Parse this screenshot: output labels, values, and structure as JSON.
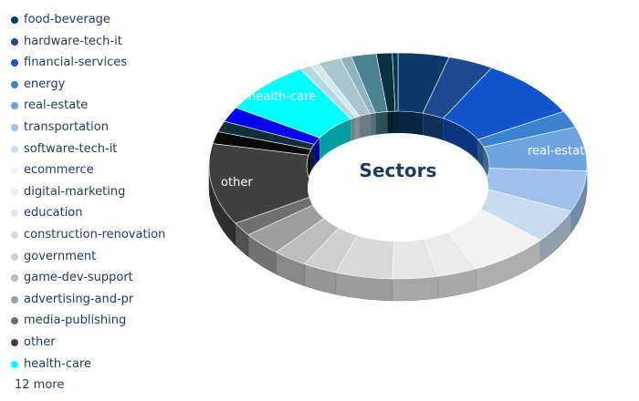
{
  "chart_data": {
    "type": "pie",
    "title": "Sectors",
    "slices": [
      {
        "label": "food-beverage",
        "value": 4.5,
        "color": "#0b3a6b"
      },
      {
        "label": "hardware-tech-it",
        "value": 4.0,
        "color": "#1c4b93"
      },
      {
        "label": "financial-services",
        "value": 9.0,
        "color": "#1155cc"
      },
      {
        "label": "energy",
        "value": 2.5,
        "color": "#3b82d0"
      },
      {
        "label": "real-estate",
        "value": 6.5,
        "color": "#6ea5e0"
      },
      {
        "label": "transportation",
        "value": 6.0,
        "color": "#9fc0ef"
      },
      {
        "label": "software-tech-it",
        "value": 5.0,
        "color": "#c8dcf0"
      },
      {
        "label": "ecommerce",
        "value": 7.0,
        "color": "#f2f2f2"
      },
      {
        "label": "digital-marketing",
        "value": 3.5,
        "color": "#ebebeb"
      },
      {
        "label": "education",
        "value": 4.0,
        "color": "#e6e6e6"
      },
      {
        "label": "construction-renovation",
        "value": 5.0,
        "color": "#d9d9d9"
      },
      {
        "label": "government",
        "value": 3.0,
        "color": "#cfcfcf"
      },
      {
        "label": "game-dev-support",
        "value": 3.0,
        "color": "#bdbdbd"
      },
      {
        "label": "advertising-and-pr",
        "value": 3.5,
        "color": "#9e9e9e"
      },
      {
        "label": "media-publishing",
        "value": 2.0,
        "color": "#707070"
      },
      {
        "label": "other",
        "value": 12.0,
        "color": "#404040"
      },
      {
        "label": "",
        "value": 1.8,
        "color": "#0a0a0a"
      },
      {
        "label": "",
        "value": 1.6,
        "color": "#0f2f3a"
      },
      {
        "label": "",
        "value": 2.2,
        "color": "#0000ee"
      },
      {
        "label": "health-care",
        "value": 8.0,
        "color": "#00ffff"
      },
      {
        "label": "",
        "value": 1.0,
        "color": "#b7d7e0"
      },
      {
        "label": "",
        "value": 0.8,
        "color": "#d6e6ea"
      },
      {
        "label": "",
        "value": 2.0,
        "color": "#a9c6cf"
      },
      {
        "label": "",
        "value": 1.0,
        "color": "#8fb4bf"
      },
      {
        "label": "",
        "value": 2.2,
        "color": "#4a8290"
      },
      {
        "label": "",
        "value": 1.4,
        "color": "#0b3040"
      },
      {
        "label": "",
        "value": 0.5,
        "color": "#093658"
      }
    ],
    "shown_labels": [
      "real-estate",
      "health-care",
      "other"
    ],
    "legend_position": "left",
    "legend_more": "12 more"
  }
}
